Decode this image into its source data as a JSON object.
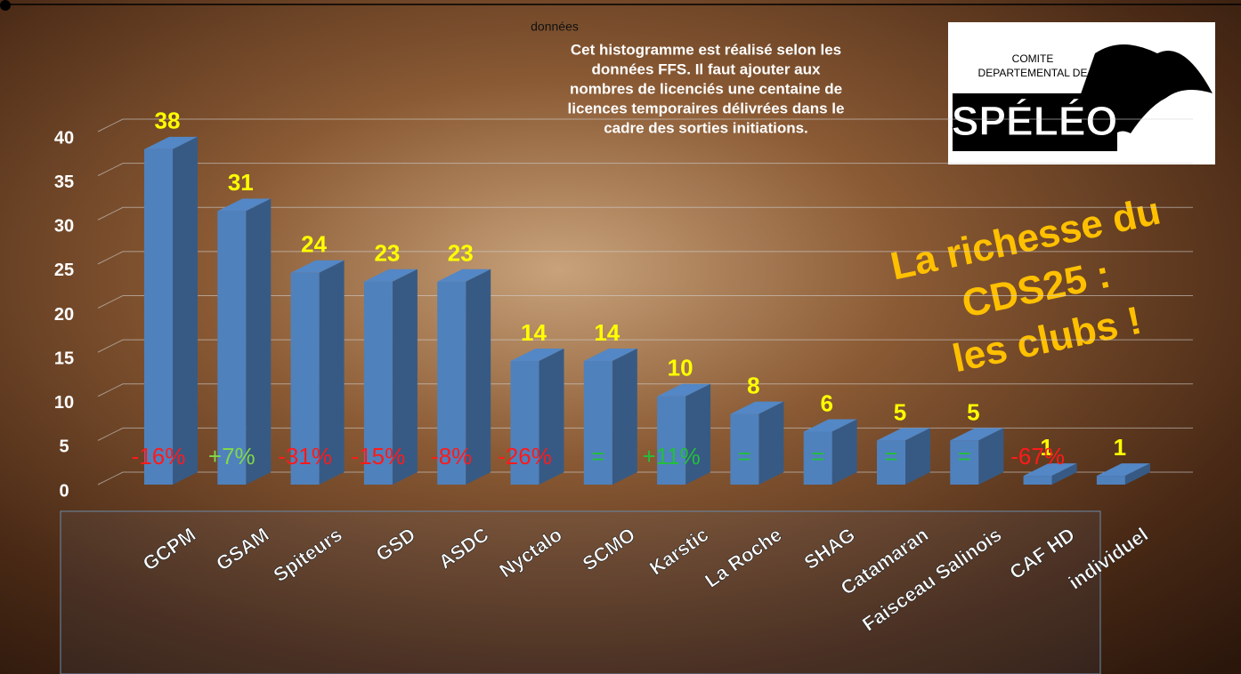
{
  "chart_data": {
    "type": "bar3d",
    "note_small": "données",
    "note": [
      "Cet histogramme est réalisé selon les",
      "données FFS. Il faut ajouter aux",
      "nombres de licenciés une centaine de",
      "licences temporaires délivrées dans le",
      "cadre des sorties initiations."
    ],
    "logo": [
      "COMITE",
      "DEPARTEMENTAL DE",
      "SPÉLÉO"
    ],
    "slogan": [
      "La richesse du",
      "CDS25 :",
      "les clubs !"
    ],
    "categories": [
      "GCPM",
      "GSAM",
      "Spiteurs",
      "GSD",
      "ASDC",
      "Nyctalo",
      "SCMO",
      "Karstic",
      "La Roche",
      "SHAG",
      "Catamaran",
      "Faisceau Salinois",
      "CAF HD",
      "individuel"
    ],
    "values": [
      38,
      31,
      24,
      23,
      23,
      14,
      14,
      10,
      8,
      6,
      5,
      5,
      1,
      1
    ],
    "color": "#4f81bd",
    "changes": [
      {
        "label": "-16%",
        "color": "#ff1a1a"
      },
      {
        "label": "+7%",
        "color": "#7fd94a"
      },
      {
        "label": "-31%",
        "color": "#ff1a1a"
      },
      {
        "label": "-15%",
        "color": "#ff1a1a"
      },
      {
        "label": "-8%",
        "color": "#ff1a1a"
      },
      {
        "label": "-26%",
        "color": "#ff1a1a"
      },
      {
        "label": "=",
        "color": "#22c03a"
      },
      {
        "label": "+11%",
        "color": "#22c03a"
      },
      {
        "label": "=",
        "color": "#22c03a"
      },
      {
        "label": "=",
        "color": "#22c03a"
      },
      {
        "label": "=",
        "color": "#22c03a"
      },
      {
        "label": "=",
        "color": "#22c03a"
      },
      {
        "label": "-67%",
        "color": "#ff1a1a"
      },
      null
    ],
    "ylim": [
      0,
      40
    ],
    "yticks": [
      0,
      5,
      10,
      15,
      20,
      25,
      30,
      35,
      40
    ],
    "grid": true
  }
}
